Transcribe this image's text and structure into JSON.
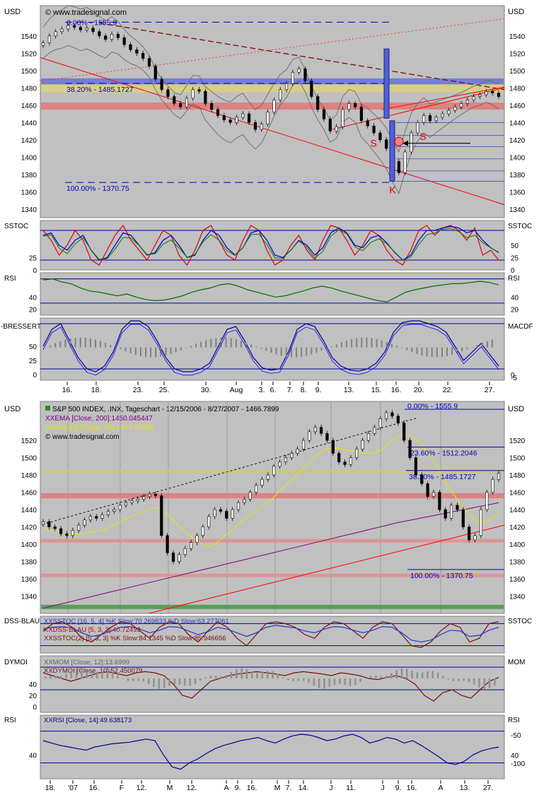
{
  "chart_data": [
    {
      "type": "line",
      "currency": "USD",
      "watermark": "© www.tradesignal.com",
      "ylim": [
        1330,
        1575
      ],
      "yticks": [
        1340,
        1360,
        1380,
        1400,
        1420,
        1440,
        1460,
        1480,
        1500,
        1520,
        1540
      ],
      "xtick_labels": [
        "16.",
        "18.",
        "23.",
        "25.",
        "30.",
        "Aug",
        "3.",
        "6.",
        "7.",
        "8.",
        "9.",
        "13.",
        "15.",
        "16.",
        "20.",
        "22.",
        "27."
      ],
      "fib_levels": [
        {
          "label": "0.00% - 1555.9",
          "value": 1555.9
        },
        {
          "label": "38.20% - 1485.1727",
          "value": 1485.17
        },
        {
          "label": "100.00% - 1370.75",
          "value": 1370.75
        }
      ],
      "zones": [
        {
          "from": 1484,
          "to": 1491,
          "color": "#6a78d8"
        },
        {
          "from": 1475,
          "to": 1484,
          "color": "#d8d080"
        },
        {
          "from": 1455,
          "to": 1463,
          "color": "#e07b7b"
        }
      ],
      "annotations": [
        "S",
        "S",
        "K"
      ],
      "close": [
        1532,
        1540,
        1545,
        1548,
        1552,
        1550,
        1547,
        1549,
        1545,
        1540,
        1536,
        1542,
        1538,
        1530,
        1524,
        1520,
        1514,
        1505,
        1490,
        1478,
        1470,
        1462,
        1458,
        1468,
        1478,
        1476,
        1462,
        1455,
        1448,
        1443,
        1440,
        1446,
        1450,
        1440,
        1432,
        1438,
        1452,
        1466,
        1478,
        1485,
        1498,
        1502,
        1488,
        1470,
        1455,
        1444,
        1430,
        1435,
        1455,
        1462,
        1458,
        1442,
        1436,
        1428,
        1420,
        1410,
        1395,
        1382,
        1406,
        1428,
        1440,
        1448,
        1442,
        1446,
        1450,
        1454,
        1458,
        1462,
        1466,
        1470,
        1472,
        1476,
        1474,
        1470
      ]
    },
    {
      "type": "line",
      "title": "SSTOC",
      "ylim": [
        0,
        100
      ],
      "yticks_left": [
        0,
        25
      ],
      "yticks_right": [
        0,
        25,
        50
      ],
      "levels": [
        20,
        80
      ],
      "series": [
        {
          "name": "",
          "color": "#e00000",
          "values": [
            80,
            60,
            30,
            50,
            80,
            60,
            20,
            10,
            40,
            70,
            90,
            60,
            40,
            20,
            50,
            80,
            70,
            30,
            10,
            40,
            80,
            90,
            60,
            30,
            20,
            60,
            90,
            80,
            40,
            10,
            20,
            50,
            70,
            40,
            20,
            60,
            90,
            85,
            60,
            30,
            50,
            80,
            70,
            40,
            20,
            10,
            40,
            80,
            90,
            70,
            85,
            90,
            80,
            60,
            85,
            30,
            40,
            20
          ]
        },
        {
          "name": "",
          "color": "#0000d0",
          "values": [
            70,
            75,
            50,
            40,
            60,
            70,
            40,
            20,
            25,
            50,
            75,
            70,
            50,
            30,
            35,
            60,
            70,
            50,
            25,
            30,
            60,
            80,
            70,
            45,
            30,
            45,
            75,
            80,
            60,
            30,
            25,
            40,
            60,
            50,
            30,
            45,
            75,
            85,
            75,
            50,
            45,
            65,
            70,
            55,
            35,
            20,
            30,
            60,
            80,
            80,
            85,
            88,
            85,
            75,
            80,
            60,
            45,
            35
          ]
        }
      ]
    },
    {
      "type": "line",
      "title": "RSI",
      "ylim": [
        10,
        80
      ],
      "yticks_left": [
        20,
        40
      ],
      "yticks_right": [
        20,
        40
      ],
      "levels": [
        30,
        70
      ],
      "series": [
        {
          "name": "",
          "color": "#007000",
          "values": [
            68,
            70,
            65,
            62,
            55,
            50,
            48,
            45,
            42,
            45,
            40,
            36,
            34,
            35,
            38,
            42,
            48,
            52,
            55,
            60,
            62,
            58,
            52,
            48,
            44,
            40,
            42,
            46,
            50,
            55,
            58,
            55,
            50,
            46,
            42,
            38,
            34,
            32,
            40,
            48,
            52,
            55,
            58,
            60,
            62,
            62,
            64,
            66,
            64,
            60
          ]
        }
      ]
    },
    {
      "type": "line",
      "title_left": "-BRESSERT",
      "title_right": "MACDF",
      "ylim": [
        -10,
        100
      ],
      "yticks_left": [
        0,
        25,
        50
      ],
      "yticks_right": [
        -5,
        0
      ],
      "levels": [
        10,
        90
      ],
      "series": [
        {
          "name": "",
          "color": "#00008b",
          "values": [
            50,
            80,
            90,
            60,
            30,
            10,
            5,
            15,
            40,
            80,
            95,
            95,
            85,
            60,
            30,
            10,
            5,
            5,
            10,
            20,
            50,
            80,
            85,
            60,
            30,
            12,
            8,
            10,
            40,
            80,
            90,
            85,
            60,
            30,
            15,
            8,
            6,
            10,
            20,
            40,
            75,
            92,
            95,
            95,
            90,
            85,
            75,
            50,
            25,
            40,
            55,
            35,
            15
          ]
        }
      ]
    },
    {
      "type": "line",
      "currency": "USD",
      "legend": [
        "S&P 500 INDEX, .INX, Tageschart - 12/15/2006 - 8/27/2007 - 1466.7899",
        "XXEMA [Close, 200]:1450.045447",
        "XXEMA(2) [Close, 50]:1479.99982"
      ],
      "watermark": "© www.tradesignal.com",
      "ylim": [
        1320,
        1565
      ],
      "yticks": [
        1340,
        1360,
        1380,
        1400,
        1420,
        1440,
        1460,
        1480,
        1500,
        1520
      ],
      "xtick_labels": [
        "18.",
        "'07",
        "16.",
        "F",
        "12.",
        "M",
        "12.",
        "A",
        "9.",
        "16.",
        "M",
        "7.",
        "14.",
        "J",
        "11.",
        "J",
        "9.",
        "16.",
        "A",
        "13.",
        "27."
      ],
      "fib_levels": [
        {
          "label": "0.00% - 1555.9",
          "value": 1555.9
        },
        {
          "label": "23.60% - 1512.2046",
          "value": 1512.2
        },
        {
          "label": "38.20% - 1485.1727",
          "value": 1485.17
        },
        {
          "label": "100.00% - 1370.75",
          "value": 1370.75
        }
      ],
      "zones": [
        {
          "from": 1482,
          "to": 1486,
          "color": "#c8c880"
        },
        {
          "from": 1453,
          "to": 1459,
          "color": "#e07b7b"
        },
        {
          "from": 1402,
          "to": 1406,
          "color": "#e09090"
        },
        {
          "from": 1362,
          "to": 1366,
          "color": "#e09090"
        },
        {
          "from": 1325,
          "to": 1330,
          "color": "#4f9a4f"
        }
      ],
      "close": [
        1426,
        1420,
        1418,
        1412,
        1410,
        1416,
        1422,
        1428,
        1432,
        1430,
        1434,
        1438,
        1440,
        1445,
        1448,
        1450,
        1452,
        1455,
        1458,
        1456,
        1410,
        1390,
        1380,
        1388,
        1395,
        1402,
        1410,
        1420,
        1432,
        1440,
        1438,
        1430,
        1440,
        1448,
        1452,
        1460,
        1468,
        1475,
        1480,
        1490,
        1495,
        1500,
        1505,
        1510,
        1520,
        1530,
        1535,
        1528,
        1520,
        1505,
        1495,
        1492,
        1500,
        1510,
        1520,
        1528,
        1535,
        1545,
        1552,
        1548,
        1540,
        1520,
        1500,
        1480,
        1470,
        1455,
        1460,
        1440,
        1430,
        1445,
        1440,
        1420,
        1405,
        1410,
        1440,
        1460,
        1475,
        1482
      ]
    },
    {
      "type": "line",
      "title_left": "DSS-BLAU",
      "title_right": "SSTOC",
      "legend": [
        "XXSSTOC [16, 5, 4] %K Slow:70.269833 %D Slow:63.277061",
        "XXDSS-BLAU [5, 3, 3]:40.72493",
        "XXSSTOC(2) [5, 3, 3] %K Slow:84.1345 %D Slow:85.946656"
      ],
      "ylim": [
        0,
        100
      ],
      "levels": [
        20,
        80
      ],
      "series": [
        {
          "name": "",
          "color": "#7a1010",
          "values": [
            60,
            80,
            85,
            70,
            40,
            30,
            50,
            70,
            85,
            80,
            60,
            40,
            70,
            85,
            80,
            50,
            30,
            60,
            85,
            70,
            40,
            20,
            50,
            80,
            85,
            80,
            70,
            50,
            40,
            70,
            85,
            80,
            60,
            40,
            70,
            85,
            80,
            50,
            20,
            15,
            30,
            60,
            80,
            70,
            30,
            40,
            80,
            85
          ]
        },
        {
          "name": "",
          "color": "#1e3ad0",
          "values": [
            65,
            70,
            72,
            68,
            55,
            45,
            50,
            60,
            70,
            72,
            65,
            55,
            62,
            72,
            70,
            60,
            50,
            58,
            70,
            65,
            55,
            45,
            55,
            70,
            75,
            72,
            68,
            60,
            55,
            65,
            72,
            70,
            62,
            55,
            62,
            72,
            70,
            55,
            35,
            30,
            35,
            50,
            62,
            60,
            45,
            48,
            62,
            70
          ]
        }
      ]
    },
    {
      "type": "line",
      "title_left": "DYMOI",
      "title_right": "MOM",
      "legend": [
        "XXMOM [Close, 12]:13.6999",
        "XXDYMOI [Close, 10]:52.450079"
      ],
      "yticks_left": [
        0,
        20,
        40
      ],
      "yticks_right": [
        -100,
        -50
      ],
      "ylim": [
        -10,
        90
      ],
      "levels": [
        30,
        70
      ],
      "series": [
        {
          "name": "",
          "color": "#7a1010",
          "values": [
            60,
            55,
            50,
            45,
            50,
            55,
            60,
            62,
            58,
            55,
            60,
            62,
            60,
            55,
            40,
            20,
            15,
            30,
            45,
            50,
            55,
            58,
            60,
            62,
            60,
            58,
            55,
            60,
            62,
            60,
            58,
            55,
            60,
            58,
            55,
            50,
            48,
            52,
            55,
            50,
            40,
            20,
            10,
            25,
            30,
            20,
            15,
            30,
            45,
            52
          ]
        }
      ]
    },
    {
      "type": "line",
      "title": "RSI",
      "legend": [
        "XXRSI [Close, 14]:49.638173"
      ],
      "ylim": [
        10,
        90
      ],
      "yticks_left": [
        40
      ],
      "yticks_right": [
        40
      ],
      "levels": [
        30,
        70
      ],
      "series": [
        {
          "name": "",
          "color": "#00008b",
          "values": [
            58,
            55,
            52,
            50,
            48,
            46,
            50,
            52,
            54,
            55,
            56,
            58,
            60,
            58,
            40,
            25,
            22,
            30,
            35,
            42,
            48,
            52,
            55,
            58,
            60,
            62,
            58,
            55,
            60,
            64,
            66,
            65,
            62,
            58,
            60,
            64,
            66,
            62,
            55,
            58,
            62,
            60,
            55,
            58,
            52,
            45,
            38,
            30,
            28,
            32,
            40,
            45,
            48,
            50
          ]
        }
      ]
    }
  ]
}
